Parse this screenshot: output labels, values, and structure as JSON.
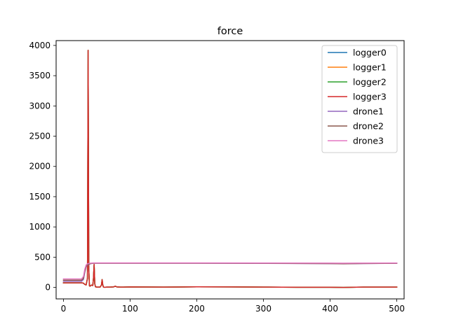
{
  "chart_data": {
    "type": "line",
    "title": "force",
    "xlabel": "",
    "ylabel": "",
    "xlim": [
      -11,
      511
    ],
    "ylim": [
      -190,
      4080
    ],
    "xticks": [
      0,
      100,
      200,
      300,
      400,
      500
    ],
    "yticks": [
      0,
      500,
      1000,
      1500,
      2000,
      2500,
      3000,
      3500,
      4000
    ],
    "grid": false,
    "legend_placement": "upper right",
    "series": [
      {
        "name": "logger0",
        "color": "#1f77b4",
        "x": [
          0,
          25,
          28,
          30,
          32,
          34,
          36,
          37,
          38,
          39,
          40,
          42,
          44,
          45,
          46,
          47,
          48,
          50,
          55,
          57,
          58,
          59,
          60,
          62,
          65,
          70,
          75,
          78,
          80,
          85,
          90,
          100,
          150,
          200,
          250,
          300,
          350,
          400,
          420,
          450,
          500
        ],
        "y": [
          75,
          75,
          75,
          70,
          50,
          40,
          150,
          3920,
          300,
          25,
          20,
          40,
          30,
          150,
          380,
          60,
          10,
          5,
          5,
          40,
          130,
          40,
          5,
          3,
          5,
          5,
          8,
          20,
          8,
          5,
          5,
          8,
          5,
          10,
          8,
          5,
          3,
          2,
          0,
          5,
          5
        ]
      },
      {
        "name": "logger1",
        "color": "#ff7f0e",
        "x": [
          0,
          25,
          28,
          30,
          32,
          34,
          36,
          37,
          38,
          39,
          40,
          42,
          44,
          45,
          46,
          47,
          48,
          50,
          55,
          57,
          58,
          59,
          60,
          62,
          65,
          70,
          75,
          78,
          80,
          85,
          90,
          100,
          150,
          200,
          250,
          300,
          350,
          400,
          420,
          450,
          500
        ],
        "y": [
          75,
          75,
          75,
          70,
          50,
          40,
          150,
          3920,
          300,
          25,
          20,
          40,
          30,
          150,
          380,
          60,
          10,
          5,
          5,
          40,
          130,
          40,
          5,
          3,
          5,
          5,
          8,
          20,
          8,
          5,
          5,
          8,
          5,
          10,
          8,
          5,
          3,
          2,
          0,
          5,
          5
        ]
      },
      {
        "name": "logger2",
        "color": "#2ca02c",
        "x": [
          0,
          25,
          28,
          30,
          32,
          34,
          36,
          37,
          38,
          39,
          40,
          42,
          44,
          45,
          46,
          47,
          48,
          50,
          55,
          57,
          58,
          59,
          60,
          62,
          65,
          70,
          75,
          78,
          80,
          85,
          90,
          100,
          150,
          200,
          250,
          300,
          350,
          400,
          420,
          450,
          500
        ],
        "y": [
          75,
          75,
          75,
          70,
          50,
          40,
          150,
          3920,
          300,
          25,
          20,
          40,
          30,
          150,
          380,
          60,
          10,
          5,
          5,
          40,
          130,
          40,
          5,
          3,
          5,
          5,
          8,
          20,
          8,
          5,
          5,
          8,
          5,
          10,
          8,
          5,
          3,
          2,
          0,
          5,
          5
        ]
      },
      {
        "name": "logger3",
        "color": "#d62728",
        "x": [
          0,
          25,
          28,
          30,
          32,
          34,
          36,
          37,
          38,
          39,
          40,
          42,
          44,
          45,
          46,
          47,
          48,
          50,
          55,
          57,
          58,
          59,
          60,
          62,
          65,
          70,
          75,
          78,
          80,
          85,
          90,
          100,
          150,
          200,
          250,
          300,
          350,
          400,
          420,
          450,
          500
        ],
        "y": [
          75,
          75,
          75,
          70,
          50,
          40,
          150,
          3920,
          300,
          25,
          20,
          40,
          30,
          150,
          380,
          60,
          10,
          5,
          5,
          40,
          130,
          40,
          5,
          3,
          5,
          5,
          8,
          20,
          8,
          5,
          5,
          8,
          5,
          10,
          8,
          5,
          3,
          2,
          0,
          5,
          5
        ]
      },
      {
        "name": "drone1",
        "color": "#9467bd",
        "x": [
          0,
          27,
          30,
          32,
          34,
          36,
          38,
          40,
          42,
          45,
          50,
          100,
          200,
          300,
          400,
          420,
          450,
          500
        ],
        "y": [
          100,
          100,
          130,
          250,
          340,
          370,
          380,
          390,
          395,
          400,
          400,
          400,
          400,
          398,
          393,
          390,
          395,
          398
        ]
      },
      {
        "name": "drone2",
        "color": "#8c564b",
        "x": [
          0,
          27,
          30,
          32,
          34,
          36,
          38,
          40,
          42,
          45,
          50,
          100,
          200,
          300,
          400,
          420,
          450,
          500
        ],
        "y": [
          120,
          120,
          150,
          270,
          350,
          375,
          385,
          392,
          397,
          400,
          400,
          400,
          400,
          399,
          395,
          392,
          396,
          398
        ]
      },
      {
        "name": "drone3",
        "color": "#e377c2",
        "x": [
          0,
          27,
          30,
          32,
          34,
          36,
          38,
          40,
          42,
          45,
          50,
          100,
          200,
          300,
          400,
          420,
          450,
          500
        ],
        "y": [
          140,
          140,
          180,
          300,
          370,
          390,
          396,
          400,
          402,
          404,
          404,
          404,
          404,
          403,
          401,
          400,
          402,
          403
        ]
      }
    ]
  }
}
